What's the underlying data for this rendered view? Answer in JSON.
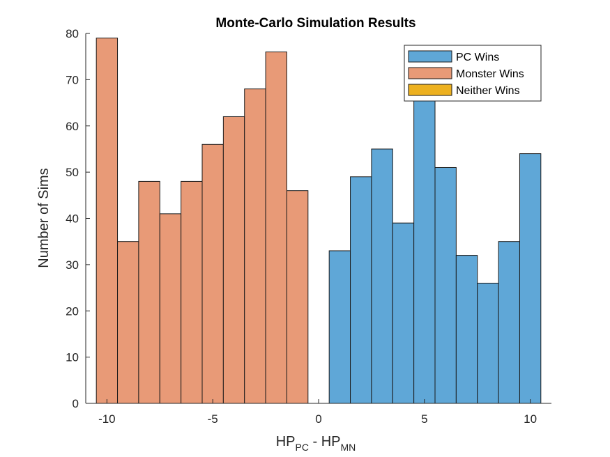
{
  "chart_data": {
    "type": "bar",
    "title": "Monte-Carlo Simulation Results",
    "xlabel": {
      "base1": "HP",
      "sub1": "PC",
      "middle": " - ",
      "base2": "HP",
      "sub2": "MN"
    },
    "ylabel": "Number of Sims",
    "xlim": [
      -11,
      11
    ],
    "ylim": [
      0,
      80
    ],
    "xticks": [
      -10,
      -5,
      0,
      5,
      10
    ],
    "yticks": [
      0,
      10,
      20,
      30,
      40,
      50,
      60,
      70,
      80
    ],
    "legend_position": "top-right",
    "series": [
      {
        "name": "PC Wins",
        "color": "#5FA7D7",
        "bins": [
          {
            "left": 0.5,
            "right": 1.5,
            "value": 33
          },
          {
            "left": 1.5,
            "right": 2.5,
            "value": 49
          },
          {
            "left": 2.5,
            "right": 3.5,
            "value": 55
          },
          {
            "left": 3.5,
            "right": 4.5,
            "value": 39
          },
          {
            "left": 4.5,
            "right": 5.5,
            "value": 66
          },
          {
            "left": 5.5,
            "right": 6.5,
            "value": 51
          },
          {
            "left": 6.5,
            "right": 7.5,
            "value": 32
          },
          {
            "left": 7.5,
            "right": 8.5,
            "value": 26
          },
          {
            "left": 8.5,
            "right": 9.5,
            "value": 35
          },
          {
            "left": 9.5,
            "right": 10.5,
            "value": 54
          }
        ]
      },
      {
        "name": "Monster Wins",
        "color": "#E89A77",
        "bins": [
          {
            "left": -10.5,
            "right": -9.5,
            "value": 79
          },
          {
            "left": -9.5,
            "right": -8.5,
            "value": 35
          },
          {
            "left": -8.5,
            "right": -7.5,
            "value": 48
          },
          {
            "left": -7.5,
            "right": -6.5,
            "value": 41
          },
          {
            "left": -6.5,
            "right": -5.5,
            "value": 48
          },
          {
            "left": -5.5,
            "right": -4.5,
            "value": 56
          },
          {
            "left": -4.5,
            "right": -3.5,
            "value": 62
          },
          {
            "left": -3.5,
            "right": -2.5,
            "value": 68
          },
          {
            "left": -2.5,
            "right": -1.5,
            "value": 76
          },
          {
            "left": -1.5,
            "right": -0.5,
            "value": 46
          }
        ]
      },
      {
        "name": "Neither Wins",
        "color": "#EDB120",
        "bins": []
      }
    ]
  }
}
